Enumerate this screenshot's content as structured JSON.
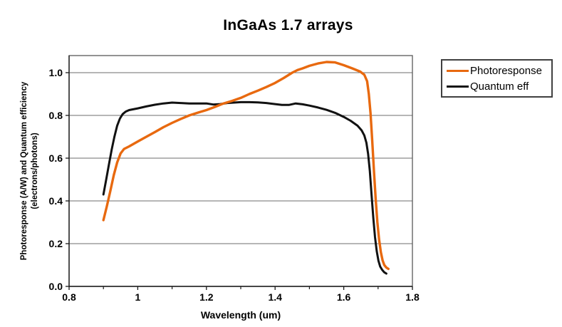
{
  "chart_data": {
    "type": "line",
    "title": "InGaAs 1.7 arrays",
    "xlabel": "Wavelength (um)",
    "ylabel_line1": "Photoresponse (A/W) and Quantum efficiency",
    "ylabel_line2": "(electrons/photons)",
    "xlim": [
      0.8,
      1.8
    ],
    "ylim": [
      0,
      1.08
    ],
    "grid": "horizontal-only",
    "legend_position": "right-outside",
    "x_ticks": [
      {
        "v": 0.8,
        "label": "0.8"
      },
      {
        "v": 1.0,
        "label": "1"
      },
      {
        "v": 1.2,
        "label": "1.2"
      },
      {
        "v": 1.4,
        "label": "1.4"
      },
      {
        "v": 1.6,
        "label": "1.6"
      },
      {
        "v": 1.8,
        "label": "1.8"
      }
    ],
    "x_minor_ticks": [
      0.9,
      1.1,
      1.3,
      1.5,
      1.7
    ],
    "y_ticks": [
      {
        "v": 0.0,
        "label": "0.0"
      },
      {
        "v": 0.2,
        "label": "0.2"
      },
      {
        "v": 0.4,
        "label": "0.4"
      },
      {
        "v": 0.6,
        "label": "0.6"
      },
      {
        "v": 0.8,
        "label": "0.8"
      },
      {
        "v": 1.0,
        "label": "1.0"
      }
    ],
    "y_gridlines": [
      0.2,
      0.4,
      0.6,
      0.8,
      1.0
    ],
    "colors": {
      "gridline": "#6e6e6e",
      "frame": "#595959",
      "axis": "#1a1a1a",
      "photoresponse": "#E8690F",
      "quantum_eff": "#111111"
    },
    "series": [
      {
        "name": "Photoresponse",
        "color": "#E8690F",
        "width": 3.4,
        "points": [
          [
            0.9,
            0.31
          ],
          [
            0.91,
            0.375
          ],
          [
            0.92,
            0.445
          ],
          [
            0.93,
            0.52
          ],
          [
            0.94,
            0.58
          ],
          [
            0.95,
            0.622
          ],
          [
            0.96,
            0.643
          ],
          [
            0.975,
            0.655
          ],
          [
            1.0,
            0.678
          ],
          [
            1.025,
            0.7
          ],
          [
            1.05,
            0.722
          ],
          [
            1.075,
            0.745
          ],
          [
            1.1,
            0.765
          ],
          [
            1.125,
            0.783
          ],
          [
            1.15,
            0.8
          ],
          [
            1.175,
            0.813
          ],
          [
            1.2,
            0.825
          ],
          [
            1.225,
            0.84
          ],
          [
            1.25,
            0.856
          ],
          [
            1.275,
            0.868
          ],
          [
            1.3,
            0.882
          ],
          [
            1.325,
            0.9
          ],
          [
            1.35,
            0.916
          ],
          [
            1.375,
            0.933
          ],
          [
            1.4,
            0.952
          ],
          [
            1.425,
            0.975
          ],
          [
            1.45,
            1.0
          ],
          [
            1.465,
            1.012
          ],
          [
            1.48,
            1.02
          ],
          [
            1.5,
            1.032
          ],
          [
            1.525,
            1.043
          ],
          [
            1.55,
            1.05
          ],
          [
            1.575,
            1.048
          ],
          [
            1.6,
            1.035
          ],
          [
            1.625,
            1.02
          ],
          [
            1.648,
            1.005
          ],
          [
            1.66,
            0.99
          ],
          [
            1.668,
            0.96
          ],
          [
            1.673,
            0.9
          ],
          [
            1.678,
            0.81
          ],
          [
            1.683,
            0.68
          ],
          [
            1.688,
            0.54
          ],
          [
            1.693,
            0.41
          ],
          [
            1.698,
            0.3
          ],
          [
            1.703,
            0.22
          ],
          [
            1.708,
            0.16
          ],
          [
            1.713,
            0.122
          ],
          [
            1.718,
            0.1
          ],
          [
            1.724,
            0.088
          ],
          [
            1.73,
            0.082
          ]
        ]
      },
      {
        "name": "Quantum eff",
        "color": "#111111",
        "width": 3,
        "points": [
          [
            0.9,
            0.43
          ],
          [
            0.908,
            0.5
          ],
          [
            0.916,
            0.57
          ],
          [
            0.924,
            0.64
          ],
          [
            0.932,
            0.7
          ],
          [
            0.94,
            0.752
          ],
          [
            0.948,
            0.785
          ],
          [
            0.956,
            0.806
          ],
          [
            0.965,
            0.818
          ],
          [
            0.975,
            0.825
          ],
          [
            1.0,
            0.833
          ],
          [
            1.025,
            0.842
          ],
          [
            1.05,
            0.85
          ],
          [
            1.075,
            0.856
          ],
          [
            1.1,
            0.86
          ],
          [
            1.125,
            0.858
          ],
          [
            1.15,
            0.856
          ],
          [
            1.175,
            0.856
          ],
          [
            1.2,
            0.856
          ],
          [
            1.22,
            0.851
          ],
          [
            1.24,
            0.853
          ],
          [
            1.26,
            0.858
          ],
          [
            1.28,
            0.86
          ],
          [
            1.3,
            0.862
          ],
          [
            1.325,
            0.862
          ],
          [
            1.35,
            0.861
          ],
          [
            1.375,
            0.858
          ],
          [
            1.4,
            0.853
          ],
          [
            1.42,
            0.849
          ],
          [
            1.44,
            0.849
          ],
          [
            1.46,
            0.856
          ],
          [
            1.48,
            0.852
          ],
          [
            1.5,
            0.846
          ],
          [
            1.525,
            0.837
          ],
          [
            1.55,
            0.826
          ],
          [
            1.575,
            0.812
          ],
          [
            1.6,
            0.793
          ],
          [
            1.62,
            0.775
          ],
          [
            1.64,
            0.752
          ],
          [
            1.652,
            0.73
          ],
          [
            1.66,
            0.706
          ],
          [
            1.666,
            0.672
          ],
          [
            1.671,
            0.62
          ],
          [
            1.676,
            0.54
          ],
          [
            1.681,
            0.43
          ],
          [
            1.686,
            0.32
          ],
          [
            1.691,
            0.23
          ],
          [
            1.696,
            0.165
          ],
          [
            1.701,
            0.12
          ],
          [
            1.706,
            0.093
          ],
          [
            1.712,
            0.077
          ],
          [
            1.718,
            0.066
          ],
          [
            1.724,
            0.06
          ]
        ]
      }
    ]
  }
}
